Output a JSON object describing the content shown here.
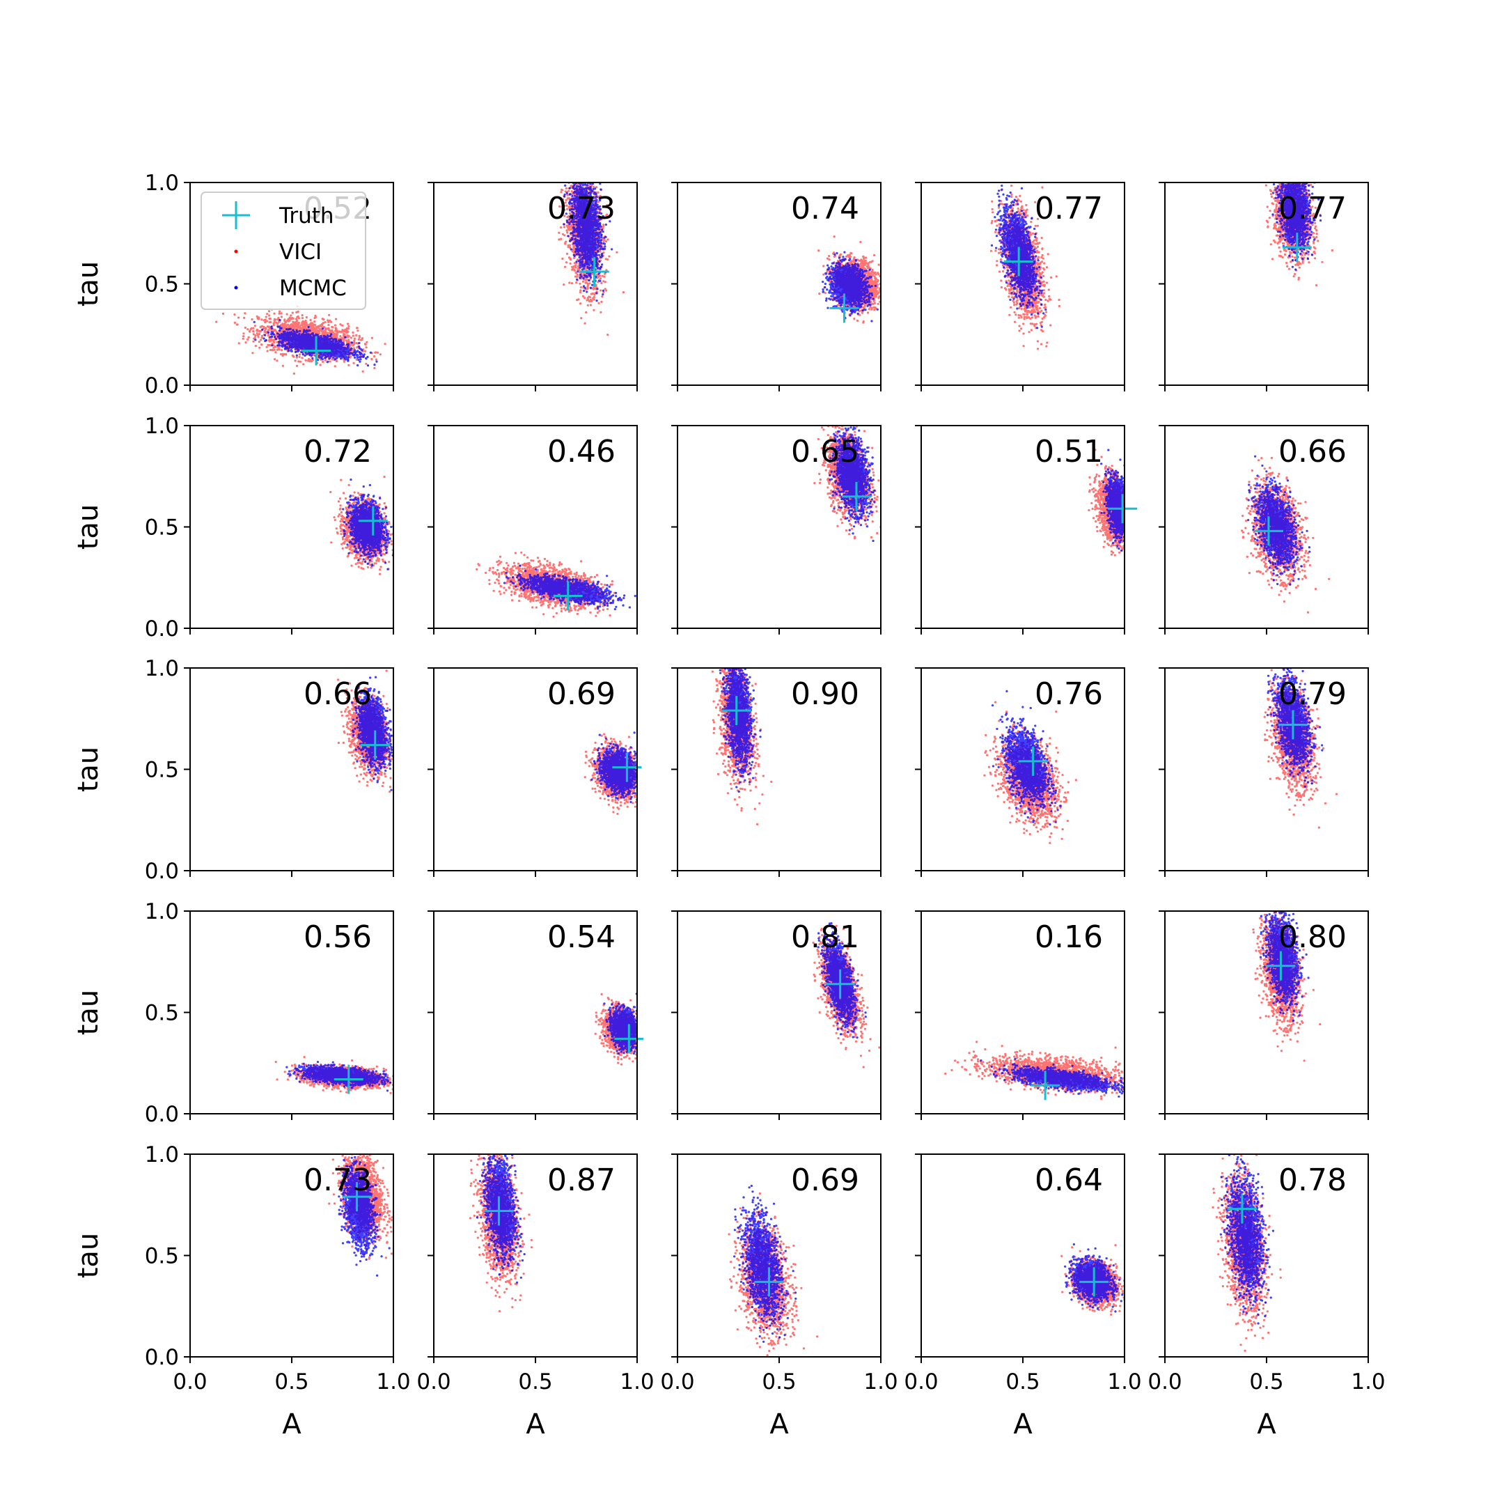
{
  "figure": {
    "legend": {
      "placement": "upper-left of first panel",
      "entries": [
        {
          "label": "Truth",
          "marker": "plus",
          "color": "#17becf"
        },
        {
          "label": "VICI",
          "marker": "dot",
          "color": "#ff0000"
        },
        {
          "label": "MCMC",
          "marker": "dot",
          "color": "#0000ff"
        }
      ]
    }
  },
  "chart_data": {
    "type": "scatter",
    "rows": 5,
    "cols": 5,
    "xlabel": "A",
    "ylabel": "tau",
    "xlim": [
      0,
      1
    ],
    "ylim": [
      0,
      1
    ],
    "xticks": [
      "0.0",
      "0.5",
      "1.0"
    ],
    "yticks": [
      "0.0",
      "0.5",
      "1.0"
    ],
    "grid": false,
    "colors": {
      "truth": "#17becf",
      "vici": "#ff0000",
      "mcmc": "#0000ff"
    },
    "panels": [
      {
        "value": "0.52",
        "truth": [
          0.62,
          0.17
        ],
        "vici": {
          "cx": 0.58,
          "cy": 0.23,
          "sx": 0.12,
          "sy": 0.05,
          "rho": -0.4
        },
        "mcmc": {
          "cx": 0.62,
          "cy": 0.2,
          "sx": 0.09,
          "sy": 0.03,
          "rho": -0.6
        }
      },
      {
        "value": "0.73",
        "truth": [
          0.79,
          0.56
        ],
        "vici": {
          "cx": 0.74,
          "cy": 0.76,
          "sx": 0.045,
          "sy": 0.14,
          "rho": -0.3
        },
        "mcmc": {
          "cx": 0.75,
          "cy": 0.79,
          "sx": 0.035,
          "sy": 0.12,
          "rho": -0.3
        }
      },
      {
        "value": "0.74",
        "truth": [
          0.82,
          0.38
        ],
        "vici": {
          "cx": 0.88,
          "cy": 0.5,
          "sx": 0.055,
          "sy": 0.06,
          "rho": -0.2
        },
        "mcmc": {
          "cx": 0.84,
          "cy": 0.49,
          "sx": 0.045,
          "sy": 0.05,
          "rho": -0.2
        }
      },
      {
        "value": "0.77",
        "truth": [
          0.48,
          0.61
        ],
        "vici": {
          "cx": 0.5,
          "cy": 0.59,
          "sx": 0.05,
          "sy": 0.13,
          "rho": -0.45
        },
        "mcmc": {
          "cx": 0.48,
          "cy": 0.65,
          "sx": 0.04,
          "sy": 0.11,
          "rho": -0.5
        }
      },
      {
        "value": "0.77",
        "truth": [
          0.65,
          0.68
        ],
        "vici": {
          "cx": 0.63,
          "cy": 0.84,
          "sx": 0.045,
          "sy": 0.1,
          "rho": -0.2
        },
        "mcmc": {
          "cx": 0.64,
          "cy": 0.87,
          "sx": 0.035,
          "sy": 0.09,
          "rho": -0.2
        }
      },
      {
        "value": "0.72",
        "truth": [
          0.9,
          0.53
        ],
        "vici": {
          "cx": 0.86,
          "cy": 0.48,
          "sx": 0.05,
          "sy": 0.07,
          "rho": -0.2
        },
        "mcmc": {
          "cx": 0.87,
          "cy": 0.5,
          "sx": 0.04,
          "sy": 0.06,
          "rho": -0.2
        }
      },
      {
        "value": "0.46",
        "truth": [
          0.66,
          0.16
        ],
        "vici": {
          "cx": 0.58,
          "cy": 0.21,
          "sx": 0.12,
          "sy": 0.05,
          "rho": -0.45
        },
        "mcmc": {
          "cx": 0.66,
          "cy": 0.19,
          "sx": 0.1,
          "sy": 0.03,
          "rho": -0.6
        }
      },
      {
        "value": "0.65",
        "truth": [
          0.88,
          0.65
        ],
        "vici": {
          "cx": 0.84,
          "cy": 0.76,
          "sx": 0.05,
          "sy": 0.1,
          "rho": -0.3
        },
        "mcmc": {
          "cx": 0.86,
          "cy": 0.76,
          "sx": 0.04,
          "sy": 0.09,
          "rho": -0.3
        }
      },
      {
        "value": "0.51",
        "truth": [
          0.99,
          0.59
        ],
        "vici": {
          "cx": 0.95,
          "cy": 0.58,
          "sx": 0.04,
          "sy": 0.08,
          "rho": -0.3
        },
        "mcmc": {
          "cx": 0.97,
          "cy": 0.6,
          "sx": 0.025,
          "sy": 0.07,
          "rho": -0.3
        }
      },
      {
        "value": "0.66",
        "truth": [
          0.51,
          0.48
        ],
        "vici": {
          "cx": 0.55,
          "cy": 0.48,
          "sx": 0.06,
          "sy": 0.11,
          "rho": -0.3
        },
        "mcmc": {
          "cx": 0.55,
          "cy": 0.5,
          "sx": 0.045,
          "sy": 0.09,
          "rho": -0.4
        }
      },
      {
        "value": "0.66",
        "truth": [
          0.91,
          0.62
        ],
        "vici": {
          "cx": 0.88,
          "cy": 0.67,
          "sx": 0.045,
          "sy": 0.09,
          "rho": -0.3
        },
        "mcmc": {
          "cx": 0.9,
          "cy": 0.69,
          "sx": 0.035,
          "sy": 0.08,
          "rho": -0.3
        }
      },
      {
        "value": "0.69",
        "truth": [
          0.95,
          0.51
        ],
        "vici": {
          "cx": 0.9,
          "cy": 0.48,
          "sx": 0.05,
          "sy": 0.06,
          "rho": -0.2
        },
        "mcmc": {
          "cx": 0.91,
          "cy": 0.49,
          "sx": 0.04,
          "sy": 0.05,
          "rho": -0.2
        }
      },
      {
        "value": "0.90",
        "truth": [
          0.29,
          0.79
        ],
        "vici": {
          "cx": 0.29,
          "cy": 0.74,
          "sx": 0.04,
          "sy": 0.14,
          "rho": -0.3
        },
        "mcmc": {
          "cx": 0.3,
          "cy": 0.78,
          "sx": 0.03,
          "sy": 0.12,
          "rho": -0.3
        }
      },
      {
        "value": "0.76",
        "truth": [
          0.55,
          0.54
        ],
        "vici": {
          "cx": 0.53,
          "cy": 0.45,
          "sx": 0.07,
          "sy": 0.1,
          "rho": -0.35
        },
        "mcmc": {
          "cx": 0.52,
          "cy": 0.52,
          "sx": 0.05,
          "sy": 0.09,
          "rho": -0.4
        }
      },
      {
        "value": "0.79",
        "truth": [
          0.63,
          0.72
        ],
        "vici": {
          "cx": 0.63,
          "cy": 0.66,
          "sx": 0.05,
          "sy": 0.12,
          "rho": -0.35
        },
        "mcmc": {
          "cx": 0.63,
          "cy": 0.73,
          "sx": 0.04,
          "sy": 0.1,
          "rho": -0.4
        }
      },
      {
        "value": "0.56",
        "truth": [
          0.78,
          0.17
        ],
        "vici": {
          "cx": 0.76,
          "cy": 0.18,
          "sx": 0.1,
          "sy": 0.025,
          "rho": -0.3
        },
        "mcmc": {
          "cx": 0.74,
          "cy": 0.19,
          "sx": 0.09,
          "sy": 0.02,
          "rho": -0.4
        }
      },
      {
        "value": "0.54",
        "truth": [
          0.96,
          0.37
        ],
        "vici": {
          "cx": 0.92,
          "cy": 0.41,
          "sx": 0.04,
          "sy": 0.05,
          "rho": -0.2
        },
        "mcmc": {
          "cx": 0.94,
          "cy": 0.42,
          "sx": 0.03,
          "sy": 0.045,
          "rho": -0.2
        }
      },
      {
        "value": "0.81",
        "truth": [
          0.8,
          0.64
        ],
        "vici": {
          "cx": 0.8,
          "cy": 0.62,
          "sx": 0.045,
          "sy": 0.1,
          "rho": -0.5
        },
        "mcmc": {
          "cx": 0.8,
          "cy": 0.65,
          "sx": 0.035,
          "sy": 0.09,
          "rho": -0.55
        }
      },
      {
        "value": "0.16",
        "truth": [
          0.61,
          0.14
        ],
        "vici": {
          "cx": 0.65,
          "cy": 0.2,
          "sx": 0.16,
          "sy": 0.04,
          "rho": -0.4
        },
        "mcmc": {
          "cx": 0.7,
          "cy": 0.17,
          "sx": 0.12,
          "sy": 0.025,
          "rho": -0.6
        }
      },
      {
        "value": "0.80",
        "truth": [
          0.57,
          0.73
        ],
        "vici": {
          "cx": 0.57,
          "cy": 0.7,
          "sx": 0.045,
          "sy": 0.12,
          "rho": -0.3
        },
        "mcmc": {
          "cx": 0.58,
          "cy": 0.77,
          "sx": 0.035,
          "sy": 0.1,
          "rho": -0.3
        }
      },
      {
        "value": "0.73",
        "truth": [
          0.82,
          0.79
        ],
        "vici": {
          "cx": 0.85,
          "cy": 0.8,
          "sx": 0.05,
          "sy": 0.1,
          "rho": -0.3
        },
        "mcmc": {
          "cx": 0.83,
          "cy": 0.73,
          "sx": 0.035,
          "sy": 0.09,
          "rho": -0.3
        }
      },
      {
        "value": "0.87",
        "truth": [
          0.32,
          0.72
        ],
        "vici": {
          "cx": 0.32,
          "cy": 0.68,
          "sx": 0.045,
          "sy": 0.14,
          "rho": -0.3
        },
        "mcmc": {
          "cx": 0.33,
          "cy": 0.74,
          "sx": 0.035,
          "sy": 0.12,
          "rho": -0.3
        }
      },
      {
        "value": "0.69",
        "truth": [
          0.45,
          0.37
        ],
        "vici": {
          "cx": 0.43,
          "cy": 0.38,
          "sx": 0.06,
          "sy": 0.13,
          "rho": -0.3
        },
        "mcmc": {
          "cx": 0.42,
          "cy": 0.45,
          "sx": 0.045,
          "sy": 0.12,
          "rho": -0.4
        }
      },
      {
        "value": "0.64",
        "truth": [
          0.85,
          0.37
        ],
        "vici": {
          "cx": 0.86,
          "cy": 0.36,
          "sx": 0.05,
          "sy": 0.05,
          "rho": -0.2
        },
        "mcmc": {
          "cx": 0.84,
          "cy": 0.38,
          "sx": 0.045,
          "sy": 0.045,
          "rho": -0.2
        }
      },
      {
        "value": "0.78",
        "truth": [
          0.38,
          0.73
        ],
        "vici": {
          "cx": 0.39,
          "cy": 0.55,
          "sx": 0.05,
          "sy": 0.16,
          "rho": -0.3
        },
        "mcmc": {
          "cx": 0.4,
          "cy": 0.6,
          "sx": 0.04,
          "sy": 0.14,
          "rho": -0.3
        }
      }
    ]
  }
}
